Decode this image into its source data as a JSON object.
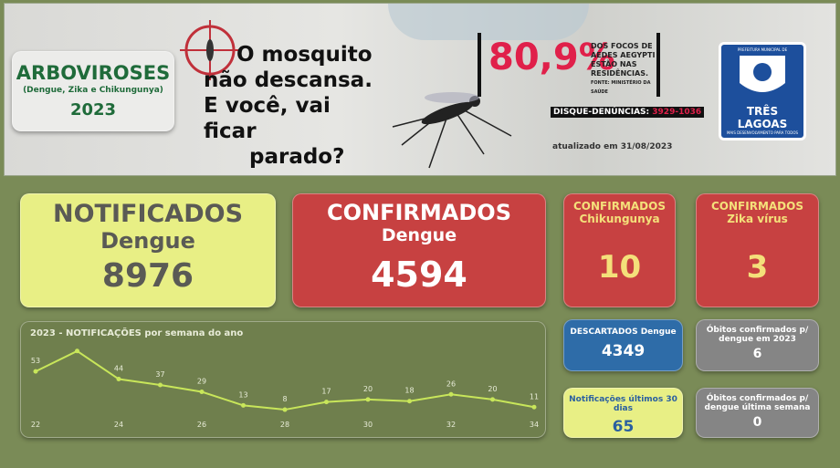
{
  "header": {
    "box": {
      "title": "ARBOVIROSES",
      "subtitle": "(Dengue, Zika e Chikungunya)",
      "year": "2023"
    },
    "slogan": [
      "O mosquito",
      "não descansa.",
      "E você, vai ficar",
      "parado?"
    ],
    "stat": {
      "value": "80,9%",
      "text": [
        "DOS FOCOS DE",
        "AEDES AEGYPTI",
        "ESTÃO NAS",
        "RESIDÊNCIAS."
      ],
      "source": "FONTE: MINISTÉRIO DA SAÚDE"
    },
    "hotline": {
      "label": "DISQUE-DENÚNCIAS:",
      "number": "3929-1036"
    },
    "updated": "atualizado em 31/08/2023",
    "logo": {
      "top": "PREFEITURA MUNICIPAL DE",
      "name": "TRÊS LAGOAS",
      "tagline": "MAIS DESENVOLVIMENTO PARA TODOS"
    }
  },
  "cards": {
    "notificados": {
      "title": "NOTIFICADOS",
      "subtitle": "Dengue",
      "value": 8976
    },
    "confirmados_dengue": {
      "title": "CONFIRMADOS",
      "subtitle": "Dengue",
      "value": 4594
    },
    "confirmados_chik": {
      "title": "CONFIRMADOS",
      "subtitle": "Chikungunya",
      "value": 10
    },
    "confirmados_zika": {
      "title": "CONFIRMADOS",
      "subtitle": "Zika vírus",
      "value": 3
    },
    "descartados": {
      "title": "DESCARTADOS Dengue",
      "value": 4349
    },
    "obitos_ano": {
      "title": [
        "Óbitos confirmados p/",
        "dengue em 2023"
      ],
      "value": 6
    },
    "notif_30": {
      "title": "Notificações últimos 30 dias",
      "value": 65
    },
    "obitos_semana": {
      "title": [
        "Óbitos confirmados p/",
        "dengue última semana"
      ],
      "value": 0
    }
  },
  "chart_data": {
    "type": "line",
    "title": "2023 - NOTIFICAÇÕES por semana do ano",
    "x": [
      22,
      23,
      24,
      25,
      26,
      27,
      28,
      29,
      30,
      31,
      32,
      33,
      34
    ],
    "series": [
      {
        "color": "#c8e65a",
        "values": [
          53,
          77,
          44,
          37,
          29,
          13,
          8,
          17,
          20,
          18,
          26,
          20,
          11
        ],
        "value_labels": [
          "53",
          null,
          "44",
          "37",
          "29",
          "13",
          "8",
          "17",
          "20",
          "18",
          "26",
          "20",
          "11"
        ]
      }
    ],
    "xlim": [
      22,
      34
    ],
    "xticks": [
      22,
      24,
      26,
      28,
      30,
      32,
      34
    ],
    "ylim": [
      0,
      80
    ]
  }
}
